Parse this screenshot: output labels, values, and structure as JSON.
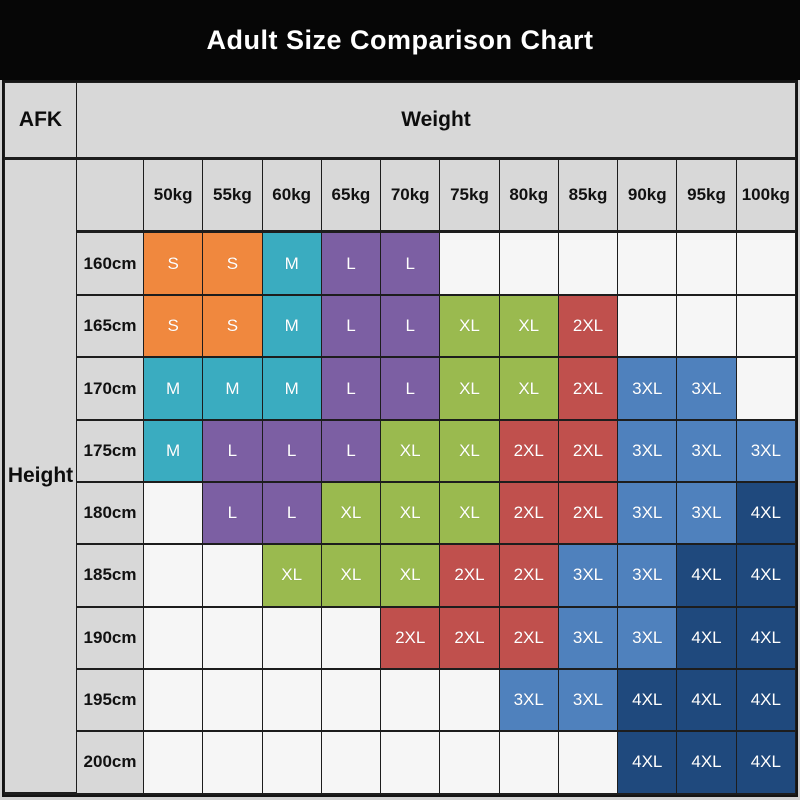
{
  "title": "Adult Size Comparison Chart",
  "corner_label": "AFK",
  "axis": {
    "x_label": "Weight",
    "y_label": "Height"
  },
  "chart_data": {
    "type": "table",
    "title": "Adult Size Comparison Chart",
    "xlabel": "Weight",
    "ylabel": "Height",
    "corner_label": "AFK",
    "columns": [
      "50kg",
      "55kg",
      "60kg",
      "65kg",
      "70kg",
      "75kg",
      "80kg",
      "85kg",
      "90kg",
      "95kg",
      "100kg"
    ],
    "rows": [
      "160cm",
      "165cm",
      "170cm",
      "175cm",
      "180cm",
      "185cm",
      "190cm",
      "195cm",
      "200cm"
    ],
    "cells": [
      [
        "S",
        "S",
        "M",
        "L",
        "L",
        "",
        "",
        "",
        "",
        "",
        ""
      ],
      [
        "S",
        "S",
        "M",
        "L",
        "L",
        "XL",
        "XL",
        "2XL",
        "",
        "",
        ""
      ],
      [
        "M",
        "M",
        "M",
        "L",
        "L",
        "XL",
        "XL",
        "2XL",
        "3XL",
        "3XL",
        ""
      ],
      [
        "M",
        "L",
        "L",
        "L",
        "XL",
        "XL",
        "2XL",
        "2XL",
        "3XL",
        "3XL",
        "3XL"
      ],
      [
        "",
        "L",
        "L",
        "XL",
        "XL",
        "XL",
        "2XL",
        "2XL",
        "3XL",
        "3XL",
        "4XL"
      ],
      [
        "",
        "",
        "XL",
        "XL",
        "XL",
        "2XL",
        "2XL",
        "3XL",
        "3XL",
        "4XL",
        "4XL"
      ],
      [
        "",
        "",
        "",
        "",
        "2XL",
        "2XL",
        "2XL",
        "3XL",
        "3XL",
        "4XL",
        "4XL"
      ],
      [
        "",
        "",
        "",
        "",
        "",
        "",
        "3XL",
        "3XL",
        "4XL",
        "4XL",
        "4XL"
      ],
      [
        "",
        "",
        "",
        "",
        "",
        "",
        "",
        "",
        "4XL",
        "4XL",
        "4XL"
      ]
    ],
    "size_colors": {
      "S": "#F0883E",
      "M": "#3AACC0",
      "L": "#7C5FA3",
      "XL": "#9ABA4F",
      "2XL": "#C0504D",
      "3XL": "#4F81BD",
      "4XL": "#1F497D"
    }
  },
  "colors": {
    "title_bg": "#060606",
    "title_text": "#FFFFFF",
    "header_bg": "#D8D8D8",
    "empty_cell_bg": "#F6F6F6",
    "border": "#1D1D1D",
    "cell_text": "#FFFFFF",
    "header_text": "#111111"
  }
}
